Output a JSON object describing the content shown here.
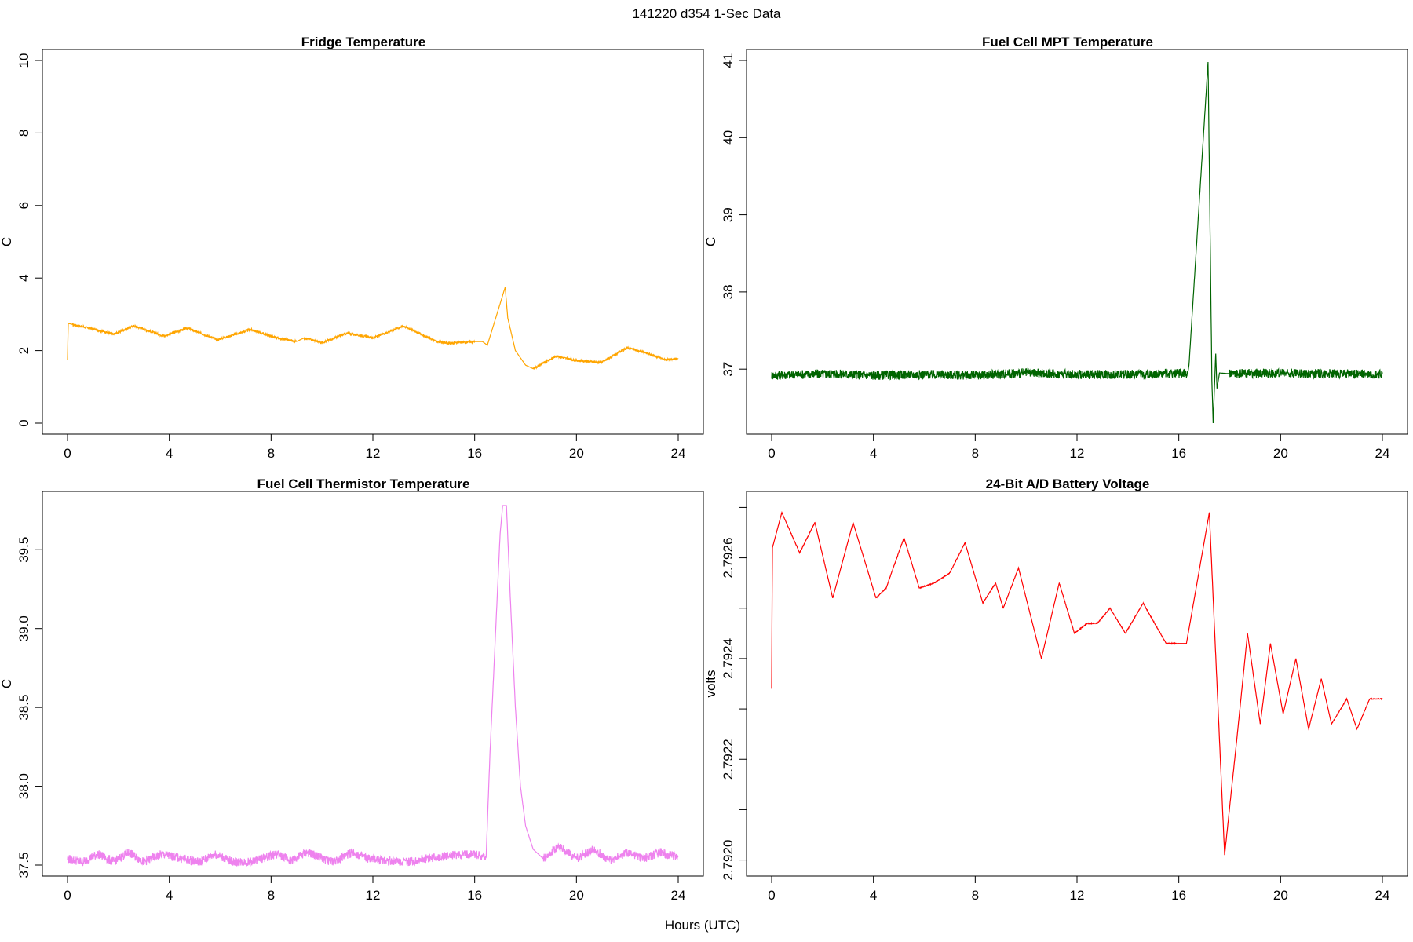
{
  "figure": {
    "title": "141220   d354   1-Sec Data",
    "xlabel": "Hours (UTC)"
  },
  "chart_data": [
    {
      "type": "line",
      "title": "Fridge Temperature",
      "ylabel": "C",
      "color": "#FFA500",
      "xlim": [
        0,
        24
      ],
      "ylim": [
        0,
        10
      ],
      "xticks": [
        0,
        4,
        8,
        12,
        16,
        20,
        24
      ],
      "yticks": [
        0,
        2,
        4,
        6,
        8,
        10
      ],
      "ytick_labels": [
        "0",
        "2",
        "4",
        "6",
        "8",
        "10"
      ],
      "noise": 0.03,
      "series": [
        {
          "x": [
            0,
            0.03,
            0.2,
            1,
            1.8,
            2.6,
            3.8,
            4.7,
            5.9,
            7.2,
            8.2,
            9.0,
            9.3,
            10,
            11,
            12,
            13.2,
            14.5,
            15,
            16,
            16.3,
            16.5,
            17.2,
            17.3,
            17.6,
            18.0,
            18.3,
            19.2,
            20,
            21,
            22,
            22.8,
            23.5,
            24
          ],
          "y": [
            1.75,
            2.75,
            2.72,
            2.6,
            2.45,
            2.68,
            2.4,
            2.62,
            2.3,
            2.58,
            2.35,
            2.25,
            2.35,
            2.22,
            2.48,
            2.35,
            2.68,
            2.25,
            2.2,
            2.25,
            2.25,
            2.15,
            3.75,
            2.9,
            2.0,
            1.6,
            1.5,
            1.85,
            1.72,
            1.68,
            2.08,
            1.92,
            1.75,
            1.77
          ]
        }
      ]
    },
    {
      "type": "line",
      "title": "Fuel Cell MPT Temperature",
      "ylabel": "C",
      "color": "#006400",
      "xlim": [
        0,
        24
      ],
      "ylim": [
        36.3,
        41.0
      ],
      "xticks": [
        0,
        4,
        8,
        12,
        16,
        20,
        24
      ],
      "yticks": [
        37,
        38,
        39,
        40,
        41
      ],
      "ytick_labels": [
        "37",
        "38",
        "39",
        "40",
        "41"
      ],
      "noise": 0.06,
      "series": [
        {
          "x": [
            0,
            2,
            4,
            6,
            8,
            10,
            12,
            14,
            16.35,
            16.4,
            17.15,
            17.3,
            17.35,
            17.45,
            17.5,
            17.6,
            18,
            20,
            22,
            24
          ],
          "y": [
            36.92,
            36.94,
            36.92,
            36.93,
            36.92,
            36.95,
            36.93,
            36.93,
            36.95,
            37.05,
            40.98,
            36.85,
            36.3,
            37.2,
            36.75,
            36.95,
            36.94,
            36.95,
            36.94,
            36.93
          ]
        }
      ]
    },
    {
      "type": "line",
      "title": "Fuel Cell Thermistor Temperature",
      "ylabel": "C",
      "color": "#EE82EE",
      "xlim": [
        0,
        24
      ],
      "ylim": [
        37.5,
        39.8
      ],
      "xticks": [
        0,
        4,
        8,
        12,
        16,
        20,
        24
      ],
      "yticks": [
        37.5,
        38.0,
        38.5,
        39.0,
        39.5
      ],
      "ytick_labels": [
        "37.5",
        "38.0",
        "38.5",
        "39.0",
        "39.5"
      ],
      "noise": 0.028,
      "series": [
        {
          "x": [
            0,
            0.6,
            1.2,
            1.8,
            2.4,
            3.0,
            3.7,
            4.5,
            5.2,
            5.8,
            6.5,
            7.2,
            8.2,
            8.8,
            9.4,
            10.4,
            11.2,
            11.8,
            12.6,
            13.4,
            14,
            15,
            16,
            16.45,
            16.6,
            17,
            17.1,
            17.25,
            17.4,
            17.6,
            17.8,
            18.0,
            18.3,
            18.7,
            19.3,
            20,
            20.7,
            21.3,
            22,
            22.6,
            23.3,
            24
          ],
          "y": [
            37.54,
            37.52,
            37.57,
            37.52,
            37.58,
            37.52,
            37.57,
            37.54,
            37.52,
            37.57,
            37.52,
            37.52,
            37.57,
            37.53,
            37.58,
            37.52,
            37.58,
            37.54,
            37.53,
            37.52,
            37.54,
            37.56,
            37.57,
            37.55,
            38.2,
            39.6,
            39.78,
            39.78,
            39.2,
            38.5,
            38.0,
            37.75,
            37.6,
            37.54,
            37.62,
            37.54,
            37.6,
            37.53,
            37.58,
            37.54,
            37.58,
            37.55
          ]
        }
      ]
    },
    {
      "type": "line",
      "title": "24-Bit A/D Battery Voltage",
      "ylabel": "volts",
      "color": "#FF0000",
      "xlim": [
        0,
        24
      ],
      "ylim": [
        2.79199,
        2.79271
      ],
      "xticks": [
        0,
        4,
        8,
        12,
        16,
        20,
        24
      ],
      "yticks": [
        2.792,
        2.7921,
        2.7922,
        2.7923,
        2.7924,
        2.7925,
        2.7926,
        2.7927
      ],
      "ytick_labels": [
        "2.7920",
        "",
        "2.7922",
        "",
        "2.7924",
        "",
        "2.7926",
        ""
      ],
      "noise": 8e-07,
      "series": [
        {
          "x": [
            0,
            0.03,
            0.4,
            1.1,
            1.7,
            2.4,
            3.2,
            4.1,
            4.5,
            5.2,
            5.8,
            6.4,
            7.0,
            7.6,
            8.3,
            8.8,
            9.1,
            9.7,
            10.6,
            11.3,
            11.9,
            12.4,
            12.8,
            13.3,
            13.9,
            14.6,
            15.5,
            16.0,
            16.3,
            17.2,
            17.8,
            18.3,
            18.7,
            19.2,
            19.6,
            20.1,
            20.6,
            21.1,
            21.6,
            22.0,
            22.6,
            23.0,
            23.5,
            24
          ],
          "y": [
            2.79234,
            2.79262,
            2.79269,
            2.79261,
            2.79267,
            2.79252,
            2.79267,
            2.79252,
            2.79254,
            2.79264,
            2.79254,
            2.79255,
            2.79257,
            2.79263,
            2.79251,
            2.79255,
            2.7925,
            2.79258,
            2.7924,
            2.79255,
            2.79245,
            2.79247,
            2.79247,
            2.7925,
            2.79245,
            2.79251,
            2.79243,
            2.79243,
            2.79243,
            2.79269,
            2.79201,
            2.79225,
            2.79245,
            2.79227,
            2.79243,
            2.79229,
            2.7924,
            2.79226,
            2.79236,
            2.79227,
            2.79232,
            2.79226,
            2.79232,
            2.79232
          ]
        }
      ]
    }
  ]
}
